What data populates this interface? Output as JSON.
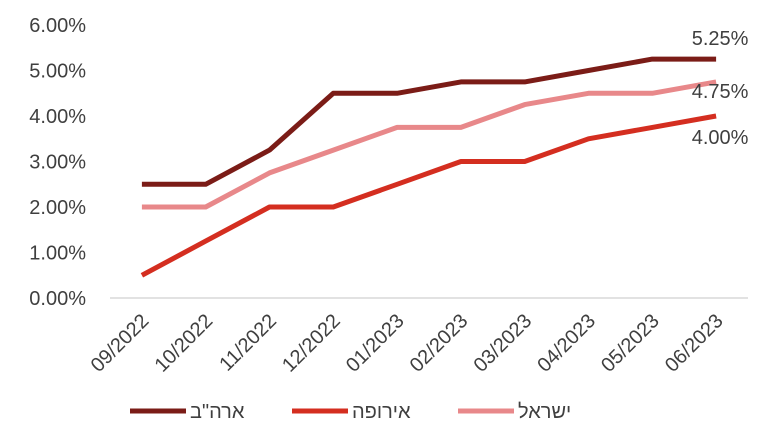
{
  "chart_data": {
    "type": "line",
    "title": "",
    "xlabel": "",
    "ylabel": "",
    "categories": [
      "09/2022",
      "10/2022",
      "11/2022",
      "12/2022",
      "01/2023",
      "02/2023",
      "03/2023",
      "04/2023",
      "05/2023",
      "06/2023"
    ],
    "ylim": [
      0,
      6
    ],
    "yticks": [
      "0.00%",
      "1.00%",
      "2.00%",
      "3.00%",
      "4.00%",
      "5.00%",
      "6.00%"
    ],
    "grid": false,
    "legend": "bottom",
    "series": [
      {
        "name": "ארה\"ב",
        "color": "#7b1c17",
        "values": [
          2.5,
          2.5,
          3.25,
          4.5,
          4.5,
          4.75,
          4.75,
          5.0,
          5.25,
          5.25
        ],
        "end_label": "5.25%"
      },
      {
        "name": "אירופה",
        "color": "#d42e20",
        "values": [
          0.5,
          1.25,
          2.0,
          2.0,
          2.5,
          3.0,
          3.0,
          3.5,
          3.75,
          4.0
        ],
        "end_label": "4.00%"
      },
      {
        "name": "ישראל",
        "color": "#e8888a",
        "values": [
          2.0,
          2.0,
          2.75,
          3.25,
          3.75,
          3.75,
          4.25,
          4.5,
          4.5,
          4.75
        ],
        "end_label": "4.75%"
      }
    ]
  }
}
